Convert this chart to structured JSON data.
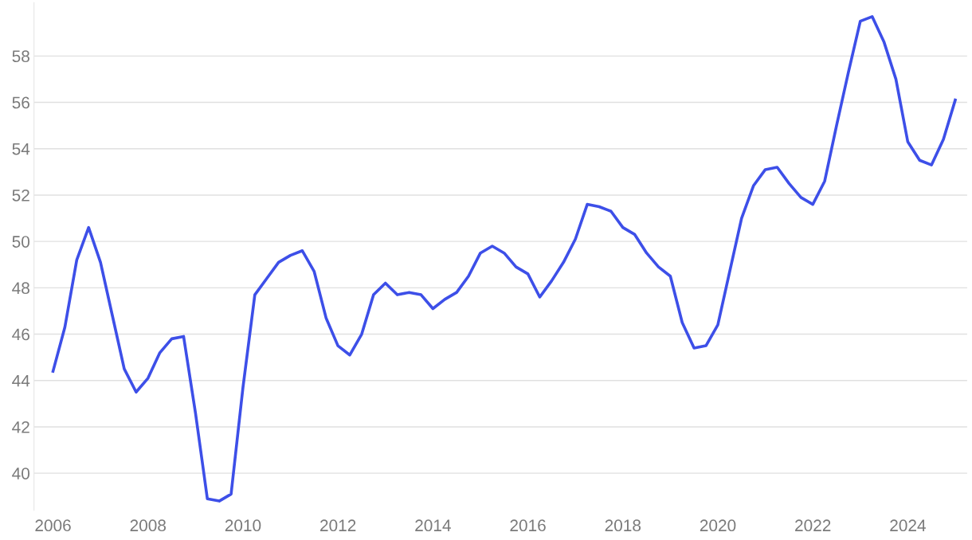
{
  "chart_data": {
    "type": "line",
    "x": [
      2006.0,
      2006.25,
      2006.5,
      2006.75,
      2007.0,
      2007.25,
      2007.5,
      2007.75,
      2008.0,
      2008.25,
      2008.5,
      2008.75,
      2009.0,
      2009.25,
      2009.5,
      2009.75,
      2010.0,
      2010.25,
      2010.5,
      2010.75,
      2011.0,
      2011.25,
      2011.5,
      2011.75,
      2012.0,
      2012.25,
      2012.5,
      2012.75,
      2013.0,
      2013.25,
      2013.5,
      2013.75,
      2014.0,
      2014.25,
      2014.5,
      2014.75,
      2015.0,
      2015.25,
      2015.5,
      2015.75,
      2016.0,
      2016.25,
      2016.5,
      2016.75,
      2017.0,
      2017.25,
      2017.5,
      2017.75,
      2018.0,
      2018.25,
      2018.5,
      2018.75,
      2019.0,
      2019.25,
      2019.5,
      2019.75,
      2020.0,
      2020.25,
      2020.5,
      2020.75,
      2021.0,
      2021.25,
      2021.5,
      2021.75,
      2022.0,
      2022.25,
      2022.5,
      2022.75,
      2023.0,
      2023.25,
      2023.5,
      2023.75,
      2024.0,
      2024.25,
      2024.5,
      2024.75,
      2025.0
    ],
    "series": [
      {
        "color": "#3d4fe8",
        "values": [
          44.4,
          46.3,
          49.2,
          50.6,
          49.1,
          46.8,
          44.5,
          43.5,
          44.1,
          45.2,
          45.8,
          45.9,
          42.6,
          38.9,
          38.8,
          39.1,
          43.7,
          47.7,
          48.4,
          49.1,
          49.4,
          49.6,
          48.7,
          46.7,
          45.5,
          45.1,
          46.0,
          47.7,
          48.2,
          47.7,
          47.8,
          47.7,
          47.1,
          47.5,
          47.8,
          48.5,
          49.5,
          49.8,
          49.5,
          48.9,
          48.6,
          47.6,
          48.3,
          49.1,
          50.1,
          51.6,
          51.5,
          51.3,
          50.6,
          50.3,
          49.5,
          48.9,
          48.5,
          46.5,
          45.4,
          45.5,
          46.4,
          48.7,
          51.0,
          52.4,
          53.1,
          53.2,
          52.5,
          51.9,
          51.6,
          52.6,
          55.0,
          57.3,
          59.5,
          59.7,
          58.6,
          57.0,
          54.3,
          53.5,
          53.3,
          54.4,
          56.1
        ]
      }
    ],
    "xlim": [
      2005.6,
      2025.25
    ],
    "ylim": [
      38.4,
      60.3
    ],
    "xticks": [
      2006,
      2008,
      2010,
      2012,
      2014,
      2016,
      2018,
      2020,
      2022,
      2024
    ],
    "yticks": [
      40,
      42,
      44,
      46,
      48,
      50,
      52,
      54,
      56,
      58
    ],
    "grid": "y",
    "legend": false,
    "marker": "none",
    "line_style": "solid"
  }
}
